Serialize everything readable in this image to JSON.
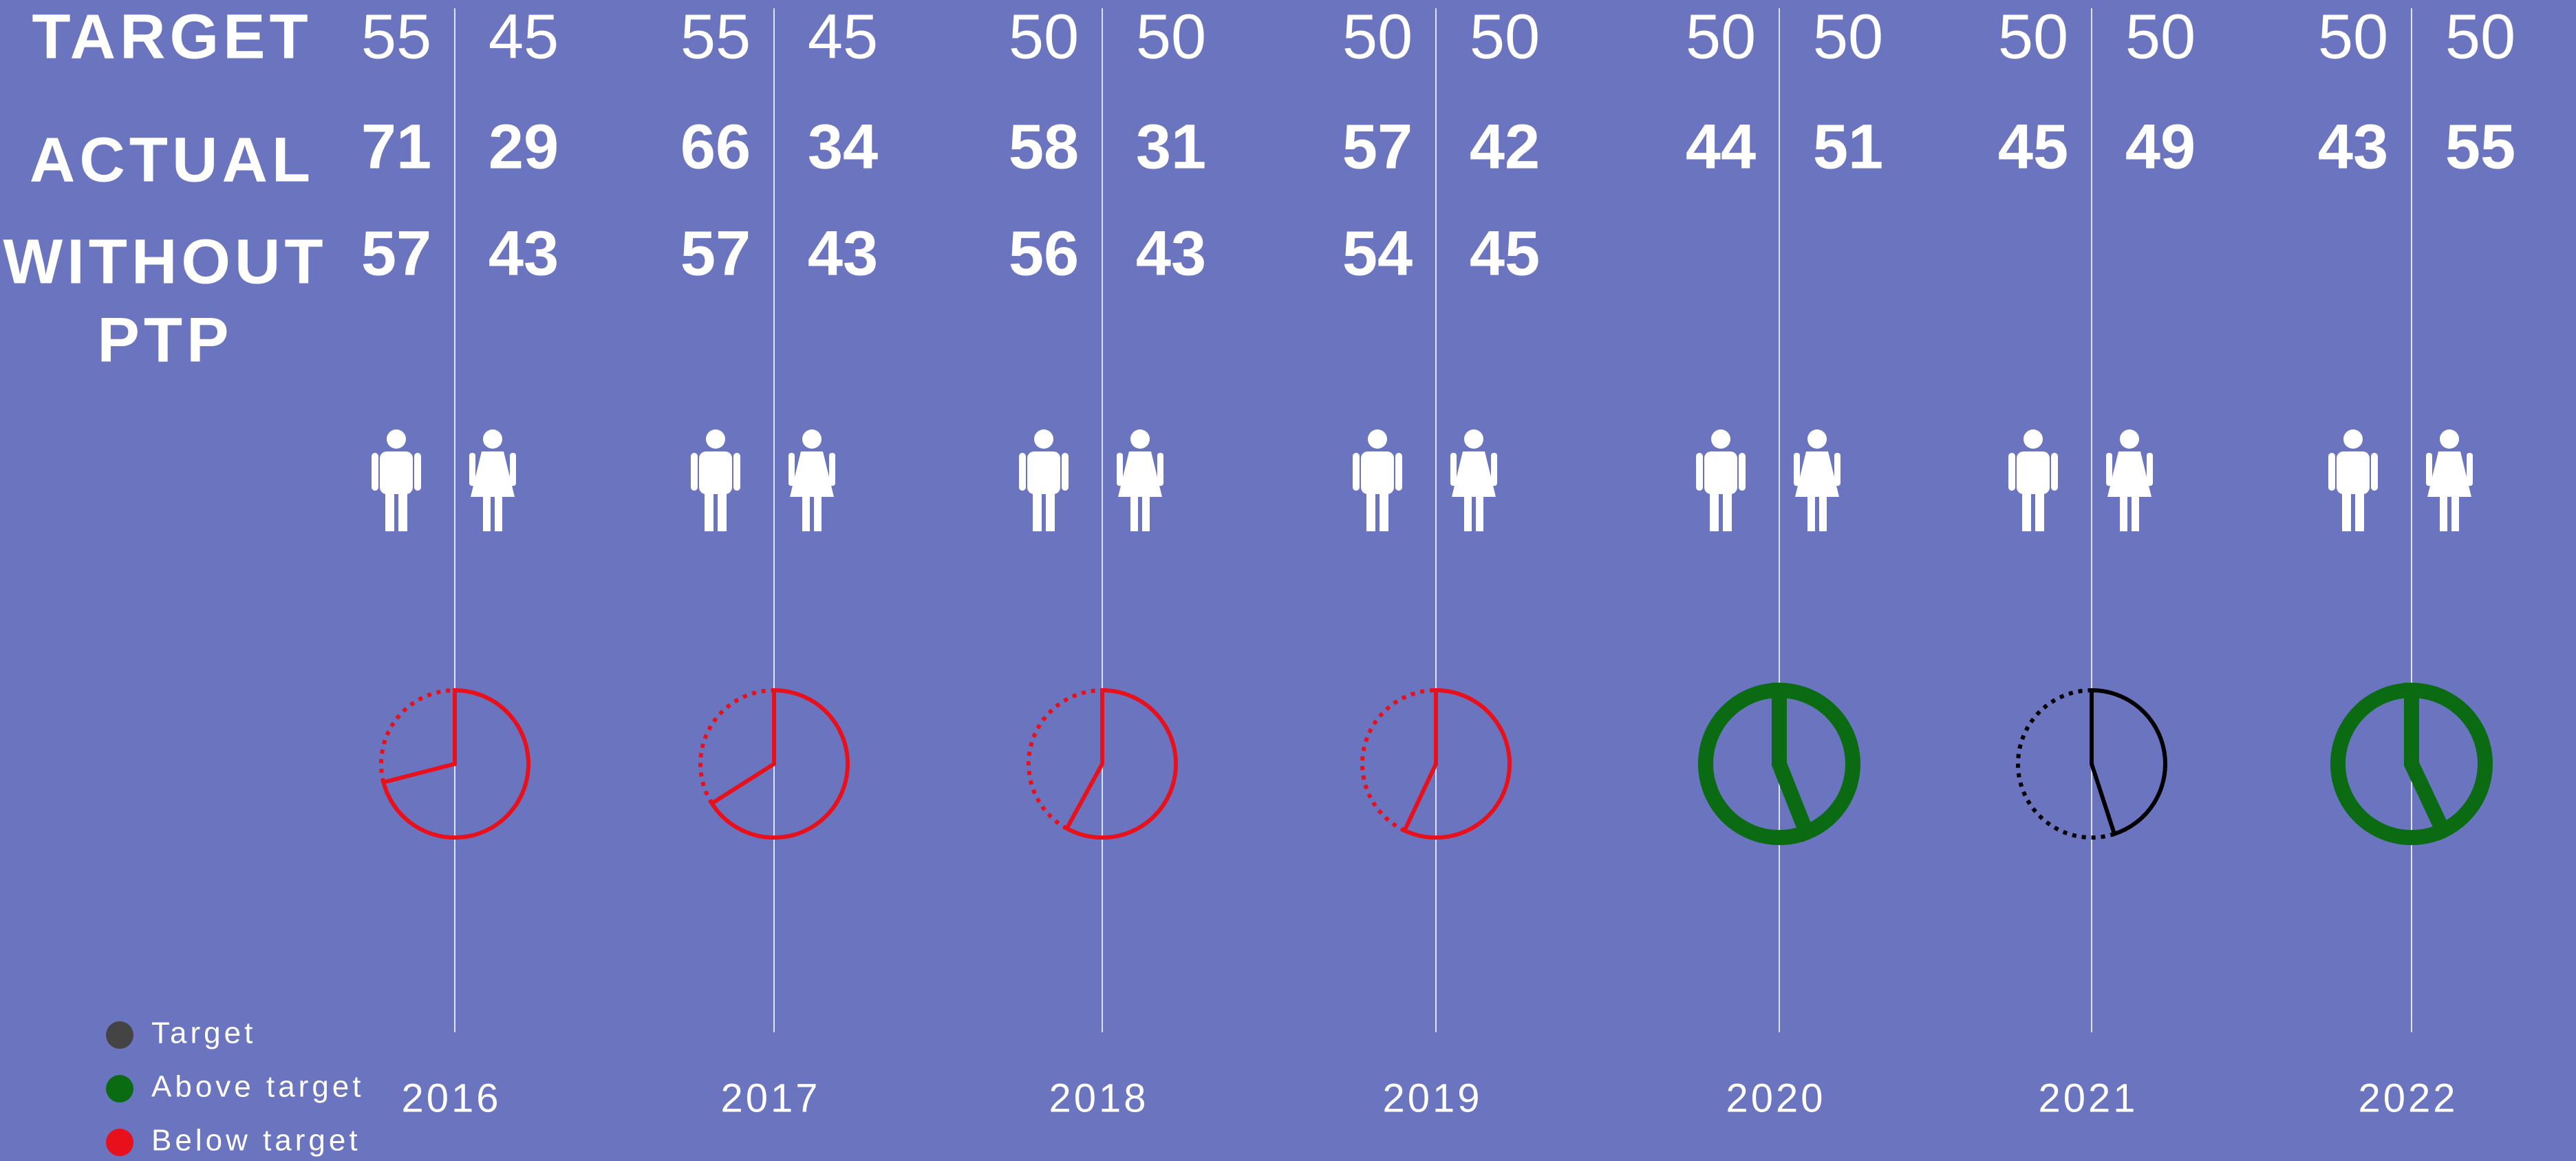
{
  "row_labels": {
    "target": "TARGET",
    "actual": "ACTUAL",
    "without": [
      "WITHOUT",
      "PTP"
    ]
  },
  "years": [
    {
      "year": "2016",
      "target": [
        55,
        45
      ],
      "actual": [
        71,
        29
      ],
      "without": [
        57,
        43
      ],
      "color": "#e8101a"
    },
    {
      "year": "2017",
      "target": [
        55,
        45
      ],
      "actual": [
        66,
        34
      ],
      "without": [
        57,
        43
      ],
      "color": "#e8101a"
    },
    {
      "year": "2018",
      "target": [
        50,
        50
      ],
      "actual": [
        58,
        31
      ],
      "without": [
        56,
        43
      ],
      "color": "#e8101a"
    },
    {
      "year": "2019",
      "target": [
        50,
        50
      ],
      "actual": [
        57,
        42
      ],
      "without": [
        54,
        45
      ],
      "color": "#e8101a"
    },
    {
      "year": "2020",
      "target": [
        50,
        50
      ],
      "actual": [
        44,
        51
      ],
      "color": "#0a6b12"
    },
    {
      "year": "2021",
      "target": [
        50,
        50
      ],
      "actual": [
        45,
        49
      ],
      "color": "#000000"
    },
    {
      "year": "2022",
      "target": [
        50,
        50
      ],
      "actual": [
        43,
        55
      ],
      "color": "#0a6b12"
    }
  ],
  "legend": [
    {
      "label": "Target",
      "color": "#444444"
    },
    {
      "label": "Above target",
      "color": "#0a6b12"
    },
    {
      "label": "Below target",
      "color": "#e8101a"
    }
  ]
}
